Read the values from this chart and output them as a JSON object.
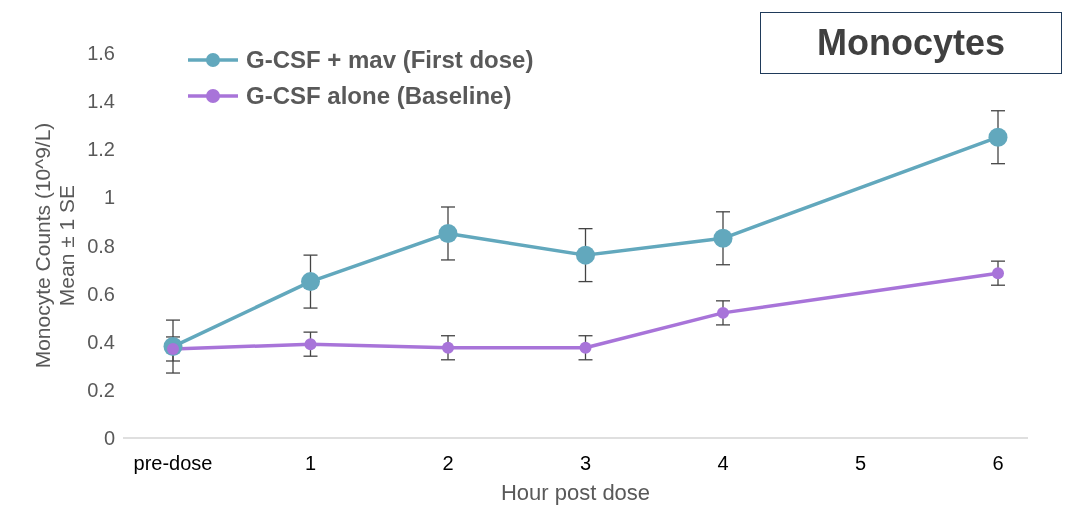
{
  "chart_data": {
    "type": "line",
    "title": "Monocytes",
    "xlabel": "Hour post dose",
    "ylabel": "Monocyte Counts (10^9/L)\nMean ± 1 SE",
    "categories": [
      "pre-dose",
      "1",
      "2",
      "3",
      "4",
      "5",
      "6"
    ],
    "series": [
      {
        "name": "G-CSF + mav (First dose)",
        "color": "#62a8bd",
        "values": [
          0.38,
          0.65,
          0.85,
          0.76,
          0.83,
          null,
          1.25
        ],
        "errors": [
          0.11,
          0.11,
          0.11,
          0.11,
          0.11,
          null,
          0.11
        ]
      },
      {
        "name": "G-CSF alone (Baseline)",
        "color": "#a874d9",
        "values": [
          0.37,
          0.39,
          0.375,
          0.375,
          0.52,
          null,
          0.685
        ],
        "errors": [
          0.05,
          0.05,
          0.05,
          0.05,
          0.05,
          null,
          0.05
        ]
      }
    ],
    "ylim": [
      0,
      1.6
    ],
    "yticks": [
      0,
      0.2,
      0.4,
      0.6,
      0.8,
      1,
      1.2,
      1.4,
      1.6
    ],
    "grid": false,
    "legend": "top left",
    "marker": "circle",
    "line_style": "solid"
  }
}
